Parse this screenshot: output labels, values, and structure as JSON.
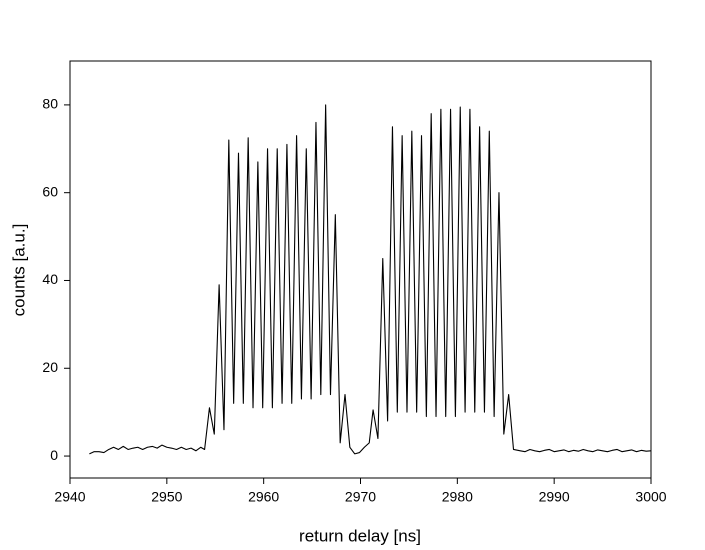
{
  "chart_data": {
    "type": "line",
    "xlabel": "return delay [ns]",
    "ylabel": "counts [a.u.]",
    "xlim": [
      2940,
      3000
    ],
    "xticks": [
      2940,
      2950,
      2960,
      2970,
      2980,
      2990,
      3000
    ],
    "ylim": [
      -5,
      90
    ],
    "yticks": [
      0,
      20,
      40,
      60,
      80
    ],
    "grid": false,
    "series": [
      {
        "color": "#000000",
        "x": [
          2942,
          2942.5,
          2943,
          2943.5,
          2944,
          2944.5,
          2945,
          2945.5,
          2946,
          2946.5,
          2947,
          2947.5,
          2948,
          2948.5,
          2949,
          2949.5,
          2950,
          2950.5,
          2951,
          2951.5,
          2952,
          2952.5,
          2953,
          2953.5,
          2953.9,
          2954.4,
          2954.9,
          2955.4,
          2955.9,
          2956.4,
          2956.9,
          2957.4,
          2957.9,
          2958.4,
          2958.9,
          2959.4,
          2959.9,
          2960.4,
          2960.9,
          2961.4,
          2961.9,
          2962.4,
          2962.9,
          2963.4,
          2963.9,
          2964.4,
          2964.9,
          2965.4,
          2965.9,
          2966.4,
          2966.9,
          2967.4,
          2967.9,
          2968.4,
          2968.9,
          2969.4,
          2969.9,
          2970.4,
          2970.9,
          2971.3,
          2971.8,
          2972.3,
          2972.8,
          2973.3,
          2973.8,
          2974.3,
          2974.8,
          2975.3,
          2975.8,
          2976.3,
          2976.8,
          2977.3,
          2977.8,
          2978.3,
          2978.8,
          2979.3,
          2979.8,
          2980.3,
          2980.8,
          2981.3,
          2981.8,
          2982.3,
          2982.8,
          2983.3,
          2983.8,
          2984.3,
          2984.8,
          2985.3,
          2985.8,
          2986.5,
          2987,
          2987.5,
          2988,
          2988.5,
          2989,
          2989.5,
          2990,
          2990.5,
          2991,
          2991.5,
          2992,
          2992.5,
          2993,
          2993.5,
          2994,
          2994.5,
          2995,
          2995.5,
          2996,
          2996.5,
          2997,
          2997.5,
          2998,
          2998.5,
          2999,
          2999.5,
          3000
        ],
        "values": [
          0.5,
          1,
          1,
          0.8,
          1.5,
          2,
          1.5,
          2.2,
          1.5,
          1.8,
          2,
          1.5,
          2,
          2.2,
          1.8,
          2.5,
          2,
          1.8,
          1.5,
          2,
          1.5,
          1.8,
          1.2,
          2,
          1.5,
          11,
          5,
          39,
          6,
          72,
          12,
          69,
          12,
          72.5,
          11,
          67,
          11,
          70,
          11,
          70,
          12,
          71,
          12,
          73,
          13,
          70,
          13,
          76,
          14,
          80,
          14,
          55,
          3,
          14,
          2,
          0.5,
          0.8,
          2,
          3,
          10.5,
          4,
          45,
          8,
          75,
          10,
          73,
          10,
          74,
          10,
          73,
          9,
          78,
          9,
          79,
          9,
          79,
          9,
          79.5,
          10,
          79,
          10,
          75,
          10,
          74,
          9,
          60,
          5,
          14,
          1.5,
          1.2,
          1,
          1.5,
          1.2,
          1,
          1.3,
          1.5,
          1,
          1.2,
          1.4,
          1,
          1.3,
          1.1,
          1.5,
          1.2,
          1,
          1.4,
          1.2,
          1,
          1.3,
          1.5,
          1,
          1.2,
          1.4,
          1,
          1.3,
          1.1,
          1.2
        ]
      }
    ]
  }
}
